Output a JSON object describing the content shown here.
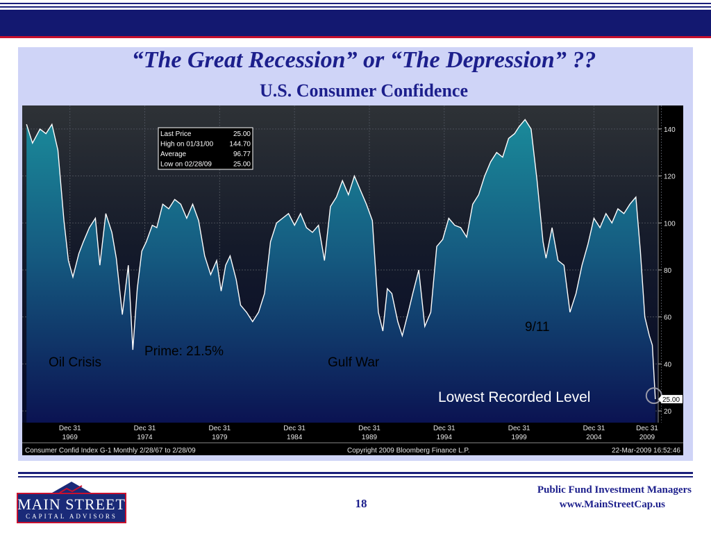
{
  "slide": {
    "title": "“The Great Recession” or “The Depression” ??",
    "subtitle": "U.S. Consumer Confidence",
    "page_number": "18",
    "firm_name": "Public Fund Investment Managers",
    "firm_url": "www.MainStreetCap.us",
    "logo_name": "MAIN STREET",
    "logo_subtitle": "CAPITAL ADVISORS"
  },
  "annotations": {
    "oil_crisis": "Oil Crisis",
    "prime": "Prime: 21.5%",
    "gulf_war": "Gulf War",
    "nine_eleven": "9/11",
    "lowest": "Lowest Recorded Level"
  },
  "terminal": {
    "stats": [
      {
        "label": "Last Price",
        "value": "25.00"
      },
      {
        "label": "High on  01/31/00",
        "value": "144.70"
      },
      {
        "label": "Average",
        "value": "96.77"
      },
      {
        "label": "Low on  02/28/09",
        "value": "25.00"
      }
    ],
    "footer_left": "Consumer Confid Index    G-1  Monthly  2/28/67 to 2/28/09",
    "footer_center": "Copyright 2009 Bloomberg Finance L.P.",
    "footer_right": "22-Mar-2009 16:52:46",
    "last_price_tag": "25.00"
  },
  "colors": {
    "accent": "#1c1f8c",
    "panel": "#cfd4f7",
    "line": "#ffffff",
    "fill_top": "#1a8a9a",
    "fill_bottom": "#0c1450"
  },
  "chart_data": {
    "type": "area",
    "x_tick_labels": [
      [
        "Dec 31",
        "1969"
      ],
      [
        "Dec 31",
        "1974"
      ],
      [
        "Dec 31",
        "1979"
      ],
      [
        "Dec 31",
        "1984"
      ],
      [
        "Dec 31",
        "1989"
      ],
      [
        "Dec 31",
        "1994"
      ],
      [
        "Dec 31",
        "1999"
      ],
      [
        "Dec 31",
        "2004"
      ],
      [
        "Dec 31",
        "2009"
      ]
    ],
    "x_ticks": [
      1970.0,
      1975.0,
      1980.0,
      1985.0,
      1990.0,
      1995.0,
      2000.0,
      2005.0,
      2009.5
    ],
    "y_ticks": [
      20,
      40,
      60,
      80,
      100,
      120,
      140
    ],
    "xlim": [
      1967.0,
      2009.2
    ],
    "ylim": [
      15,
      150
    ],
    "grid": true,
    "series": [
      {
        "x": [
          1967.1,
          1967.5,
          1968.0,
          1968.4,
          1968.8,
          1969.2,
          1969.6,
          1969.9,
          1970.2,
          1970.6,
          1970.9,
          1971.3,
          1971.7,
          1972.0,
          1972.4,
          1972.8,
          1973.1,
          1973.5,
          1973.9,
          1974.2,
          1974.5,
          1974.8,
          1975.1,
          1975.5,
          1975.8,
          1976.2,
          1976.6,
          1977.0,
          1977.4,
          1977.8,
          1978.2,
          1978.6,
          1979.0,
          1979.4,
          1979.8,
          1980.1,
          1980.4,
          1980.7,
          1981.1,
          1981.4,
          1981.8,
          1982.2,
          1982.6,
          1983.0,
          1983.4,
          1983.8,
          1984.2,
          1984.6,
          1985.0,
          1985.4,
          1985.8,
          1986.2,
          1986.6,
          1987.0,
          1987.4,
          1987.8,
          1988.2,
          1988.6,
          1989.0,
          1989.4,
          1989.8,
          1990.2,
          1990.6,
          1990.9,
          1991.2,
          1991.5,
          1991.9,
          1992.2,
          1992.6,
          1992.9,
          1993.3,
          1993.7,
          1994.1,
          1994.5,
          1994.9,
          1995.3,
          1995.7,
          1996.1,
          1996.5,
          1996.9,
          1997.3,
          1997.7,
          1998.1,
          1998.5,
          1998.9,
          1999.3,
          1999.7,
          2000.0,
          2000.4,
          2000.8,
          2001.2,
          2001.6,
          2001.8,
          2002.2,
          2002.6,
          2003.0,
          2003.4,
          2003.8,
          2004.2,
          2004.6,
          2005.0,
          2005.4,
          2005.8,
          2006.2,
          2006.6,
          2007.0,
          2007.4,
          2007.8,
          2008.1,
          2008.4,
          2008.7,
          2008.9,
          2009.1
        ],
        "values": [
          142,
          134,
          140,
          138,
          142,
          131,
          101,
          84,
          77,
          87,
          92,
          98,
          102,
          82,
          104,
          96,
          85,
          61,
          82,
          46,
          72,
          88,
          92,
          99,
          98,
          108,
          106,
          110,
          108,
          102,
          108,
          101,
          86,
          78,
          84,
          71,
          82,
          86,
          76,
          65,
          62,
          58,
          62,
          70,
          92,
          100,
          102,
          104,
          99,
          104,
          98,
          96,
          99,
          84,
          107,
          111,
          118,
          112,
          120,
          114,
          108,
          101,
          62,
          54,
          72,
          70,
          58,
          52,
          62,
          70,
          80,
          56,
          62,
          90,
          93,
          102,
          99,
          98,
          94,
          108,
          112,
          120,
          126,
          130,
          128,
          136,
          138,
          141,
          144,
          140,
          118,
          92,
          85,
          98,
          84,
          82,
          62,
          70,
          82,
          91,
          102,
          98,
          104,
          100,
          106,
          104,
          108,
          111,
          88,
          60,
          52,
          48,
          25
        ],
        "color": "#ffffff"
      }
    ]
  }
}
